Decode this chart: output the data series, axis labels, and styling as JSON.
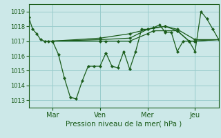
{
  "xlabel": "Pression niveau de la mer( hPa )",
  "bg_color": "#cce8e8",
  "grid_color": "#99cccc",
  "line_color": "#1a5c1a",
  "ylim": [
    1012.5,
    1019.5
  ],
  "yticks": [
    1013,
    1014,
    1015,
    1016,
    1017,
    1018,
    1019
  ],
  "xlim": [
    0,
    96
  ],
  "xtick_positions": [
    12,
    36,
    60,
    84
  ],
  "xtick_labels": [
    "Mar",
    "Ven",
    "Mer",
    "Jeu"
  ],
  "vline_positions": [
    12,
    36,
    60,
    84
  ],
  "series1_x": [
    0,
    2,
    4,
    6,
    8,
    10,
    12,
    15,
    18,
    21,
    24,
    27,
    30,
    33,
    36,
    39,
    42,
    45,
    48,
    51,
    54,
    57,
    60,
    63,
    66,
    69,
    72,
    75,
    78,
    81,
    84,
    87,
    90,
    93,
    96
  ],
  "series1_y": [
    1018.6,
    1017.8,
    1017.5,
    1017.1,
    1017.0,
    1017.0,
    1017.0,
    1016.1,
    1014.5,
    1013.2,
    1013.1,
    1014.3,
    1015.3,
    1015.3,
    1015.3,
    1016.2,
    1015.3,
    1015.2,
    1016.3,
    1015.1,
    1016.3,
    1017.8,
    1017.8,
    1017.9,
    1018.1,
    1017.6,
    1017.6,
    1016.3,
    1017.0,
    1017.0,
    1016.3,
    1019.0,
    1018.5,
    1017.8,
    1017.1
  ],
  "series2_x": [
    12,
    36,
    39,
    45,
    51,
    60,
    63,
    69,
    75,
    81,
    84,
    96
  ],
  "series2_y": [
    1017.0,
    1017.0,
    1017.0,
    1017.0,
    1017.0,
    1017.5,
    1017.7,
    1017.7,
    1017.7,
    1017.0,
    1017.0,
    1017.1
  ],
  "series3_x": [
    12,
    36,
    51,
    60,
    69,
    75,
    81,
    84,
    96
  ],
  "series3_y": [
    1017.0,
    1017.1,
    1017.2,
    1017.8,
    1018.0,
    1017.7,
    1017.0,
    1017.0,
    1017.1
  ],
  "series4_x": [
    12,
    36,
    51,
    63,
    69,
    75,
    84,
    96
  ],
  "series4_y": [
    1017.0,
    1017.2,
    1017.5,
    1017.9,
    1018.0,
    1017.8,
    1017.1,
    1017.1
  ],
  "ylabel_fontsize": 6,
  "xlabel_fontsize": 7.5,
  "xtick_fontsize": 7,
  "linewidth": 0.9,
  "markersize": 2.2
}
